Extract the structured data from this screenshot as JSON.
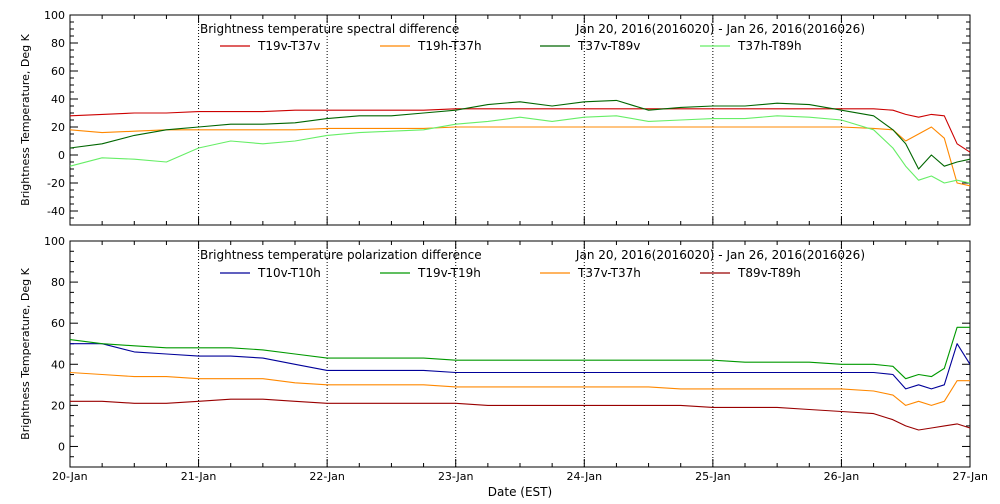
{
  "xlabel": "Date (EST)",
  "x_ticks": [
    "20-Jan",
    "21-Jan",
    "22-Jan",
    "23-Jan",
    "24-Jan",
    "25-Jan",
    "26-Jan",
    "27-Jan"
  ],
  "chart_data": [
    {
      "type": "line",
      "title": "Brightness temperature spectral difference",
      "subtitle": "Jan 20, 2016(2016020) - Jan 26, 2016(2016026)",
      "xlabel": "Date (EST)",
      "ylabel": "Brightness Temperature, Deg K",
      "xlim": [
        0,
        7
      ],
      "ylim": [
        -50,
        100
      ],
      "yticks": [
        -40,
        -20,
        0,
        20,
        40,
        60,
        80,
        100
      ],
      "grid": true,
      "legend": "top",
      "x": [
        0,
        0.25,
        0.5,
        0.75,
        1,
        1.25,
        1.5,
        1.75,
        2,
        2.25,
        2.5,
        2.75,
        3,
        3.25,
        3.5,
        3.75,
        4,
        4.25,
        4.5,
        4.75,
        5,
        5.25,
        5.5,
        5.75,
        6,
        6.25,
        6.4,
        6.5,
        6.6,
        6.7,
        6.8,
        6.9,
        7
      ],
      "series": [
        {
          "name": "T19v-T37v",
          "color": "#cc0000",
          "values": [
            28,
            29,
            30,
            30,
            31,
            31,
            31,
            32,
            32,
            32,
            32,
            32,
            33,
            33,
            33,
            33,
            33,
            33,
            33,
            33,
            33,
            33,
            33,
            33,
            33,
            33,
            32,
            29,
            27,
            29,
            28,
            8,
            2
          ]
        },
        {
          "name": "T19h-T37h",
          "color": "#ff8800",
          "values": [
            18,
            16,
            17,
            18,
            18,
            18,
            18,
            18,
            19,
            19,
            19,
            19,
            20,
            20,
            20,
            20,
            20,
            20,
            20,
            20,
            20,
            20,
            20,
            20,
            20,
            19,
            18,
            10,
            15,
            20,
            12,
            -20,
            -22
          ]
        },
        {
          "name": "T37v-T89v",
          "color": "#006600",
          "values": [
            5,
            8,
            14,
            18,
            20,
            22,
            22,
            23,
            26,
            28,
            28,
            30,
            32,
            36,
            38,
            35,
            38,
            39,
            32,
            34,
            35,
            35,
            37,
            36,
            32,
            28,
            18,
            8,
            -10,
            0,
            -8,
            -5,
            -3
          ]
        },
        {
          "name": "T37h-T89h",
          "color": "#66ee66",
          "values": [
            -8,
            -2,
            -3,
            -5,
            5,
            10,
            8,
            10,
            14,
            16,
            17,
            18,
            22,
            24,
            27,
            24,
            27,
            28,
            24,
            25,
            26,
            26,
            28,
            27,
            25,
            18,
            5,
            -8,
            -18,
            -15,
            -20,
            -18,
            -20
          ]
        }
      ]
    },
    {
      "type": "line",
      "title": "Brightness temperature polarization difference",
      "subtitle": "Jan 20, 2016(2016020) - Jan 26, 2016(2016026)",
      "xlabel": "Date (EST)",
      "ylabel": "Brightness Temperature, Deg K",
      "xlim": [
        0,
        7
      ],
      "ylim": [
        -10,
        100
      ],
      "yticks": [
        0,
        20,
        40,
        60,
        80,
        100
      ],
      "grid": true,
      "legend": "top",
      "x": [
        0,
        0.25,
        0.5,
        0.75,
        1,
        1.25,
        1.5,
        1.75,
        2,
        2.25,
        2.5,
        2.75,
        3,
        3.25,
        3.5,
        3.75,
        4,
        4.25,
        4.5,
        4.75,
        5,
        5.25,
        5.5,
        5.75,
        6,
        6.25,
        6.4,
        6.5,
        6.6,
        6.7,
        6.8,
        6.9,
        7
      ],
      "series": [
        {
          "name": "T10v-T10h",
          "color": "#000099",
          "values": [
            50,
            50,
            46,
            45,
            44,
            44,
            43,
            40,
            37,
            37,
            37,
            37,
            36,
            36,
            36,
            36,
            36,
            36,
            36,
            36,
            36,
            36,
            36,
            36,
            36,
            36,
            35,
            28,
            30,
            28,
            30,
            50,
            40
          ]
        },
        {
          "name": "T19v-T19h",
          "color": "#009900",
          "values": [
            52,
            50,
            49,
            48,
            48,
            48,
            47,
            45,
            43,
            43,
            43,
            43,
            42,
            42,
            42,
            42,
            42,
            42,
            42,
            42,
            42,
            41,
            41,
            41,
            40,
            40,
            39,
            33,
            35,
            34,
            38,
            58,
            58
          ]
        },
        {
          "name": "T37v-T37h",
          "color": "#ff8800",
          "values": [
            36,
            35,
            34,
            34,
            33,
            33,
            33,
            31,
            30,
            30,
            30,
            30,
            29,
            29,
            29,
            29,
            29,
            29,
            29,
            28,
            28,
            28,
            28,
            28,
            28,
            27,
            25,
            20,
            22,
            20,
            22,
            32,
            32
          ]
        },
        {
          "name": "T89v-T89h",
          "color": "#990000",
          "values": [
            22,
            22,
            21,
            21,
            22,
            23,
            23,
            22,
            21,
            21,
            21,
            21,
            21,
            20,
            20,
            20,
            20,
            20,
            20,
            20,
            19,
            19,
            19,
            18,
            17,
            16,
            13,
            10,
            8,
            9,
            10,
            11,
            9
          ]
        }
      ]
    }
  ]
}
